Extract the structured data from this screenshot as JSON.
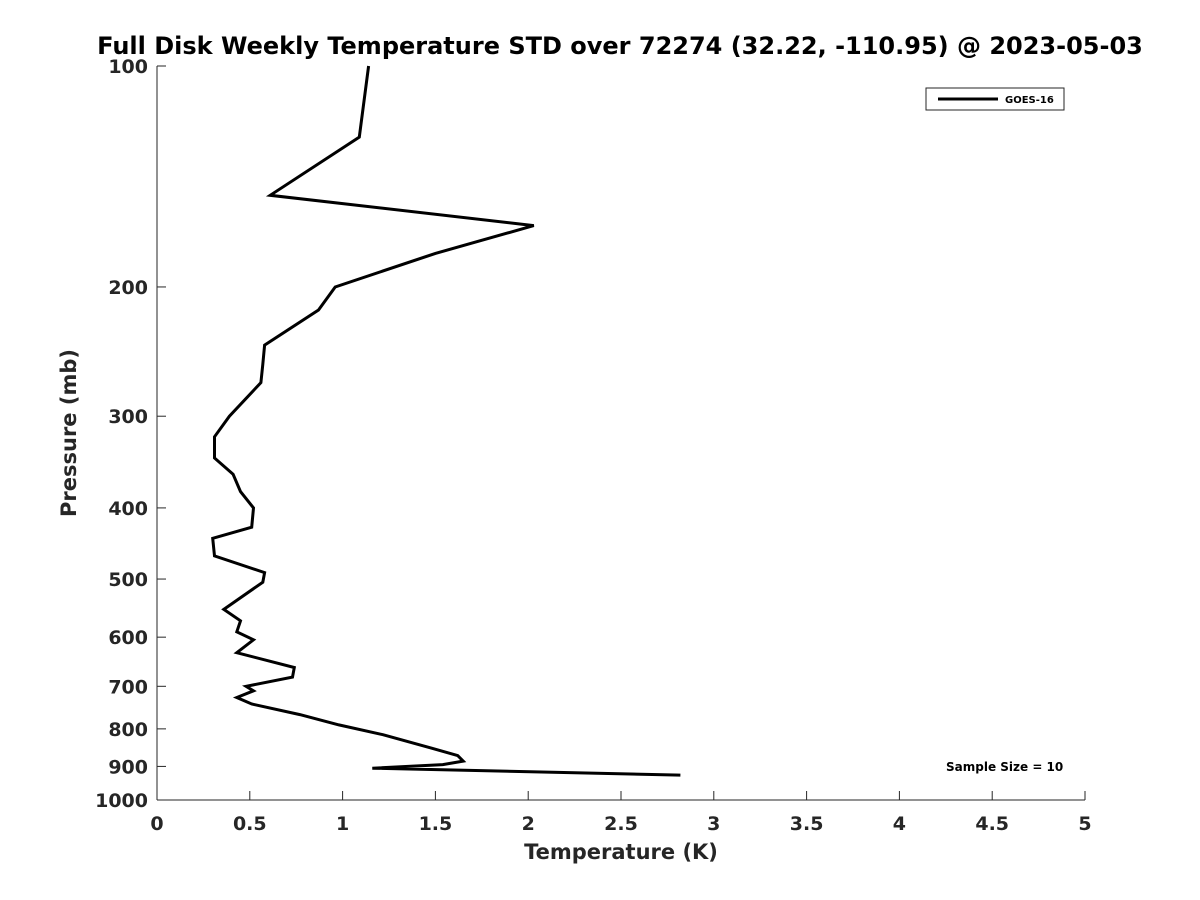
{
  "chart_data": {
    "type": "line",
    "title": "Full Disk Weekly Temperature STD over 72274 (32.22, -110.95) @ 2023-05-03",
    "xlabel": "Temperature (K)",
    "ylabel": "Pressure (mb)",
    "xlim": [
      0,
      5
    ],
    "ylim": [
      100,
      1000
    ],
    "yscale": "log",
    "y_reversed": true,
    "grid": false,
    "xticks": [
      0,
      0.5,
      1,
      1.5,
      2,
      2.5,
      3,
      3.5,
      4,
      4.5,
      5
    ],
    "xtick_labels": [
      "0",
      "0.5",
      "1",
      "1.5",
      "2",
      "2.5",
      "3",
      "3.5",
      "4",
      "4.5",
      "5"
    ],
    "yticks": [
      100,
      200,
      300,
      400,
      500,
      600,
      700,
      800,
      900,
      1000
    ],
    "ytick_labels": [
      "100",
      "200",
      "300",
      "400",
      "500",
      "600",
      "700",
      "800",
      "900",
      "1000"
    ],
    "legend": {
      "position": "top-right",
      "entries": [
        "GOES-16"
      ]
    },
    "annotation": "Sample Size = 10",
    "series": [
      {
        "name": "GOES-16",
        "color": "#000000",
        "x": [
          1.14,
          1.09,
          0.61,
          2.03,
          1.5,
          0.96,
          0.87,
          0.58,
          0.57,
          0.56,
          0.39,
          0.31,
          0.31,
          0.41,
          0.45,
          0.52,
          0.51,
          0.3,
          0.31,
          0.58,
          0.57,
          0.36,
          0.45,
          0.43,
          0.52,
          0.43,
          0.74,
          0.73,
          0.48,
          0.52,
          0.43,
          0.51,
          0.77,
          0.98,
          1.22,
          1.48,
          1.62,
          1.65,
          1.54,
          1.16,
          2.82
        ],
        "y": [
          100,
          125,
          150,
          165,
          180,
          200,
          215,
          240,
          255,
          270,
          300,
          320,
          342,
          360,
          380,
          400,
          425,
          440,
          465,
          490,
          505,
          550,
          570,
          590,
          605,
          630,
          660,
          680,
          700,
          710,
          725,
          740,
          765,
          790,
          815,
          850,
          870,
          885,
          895,
          905,
          925
        ]
      }
    ]
  }
}
